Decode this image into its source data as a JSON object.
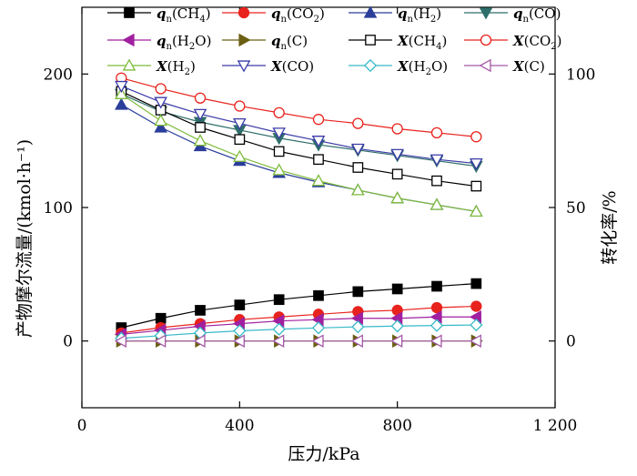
{
  "chart_data": {
    "type": "line",
    "xlabel": "压力/kPa",
    "ylabel_left": "产物摩尔流量/(kmol·h⁻¹)",
    "ylabel_right": "转化率/%",
    "x_ticks": [
      "0",
      "400",
      "800",
      "1 200"
    ],
    "y_left_ticks": [
      "0",
      "100",
      "200"
    ],
    "y_right_ticks": [
      "0",
      "50",
      "100"
    ],
    "xlim": [
      0,
      1200
    ],
    "ylim_left": [
      -50,
      250
    ],
    "ylim_right": [
      -25,
      125
    ],
    "grid": false,
    "legend_placement": "top",
    "x": [
      100,
      200,
      300,
      400,
      500,
      600,
      700,
      800,
      900,
      1000
    ],
    "series": [
      {
        "name": "qn(CH4)",
        "legend": {
          "main": "q",
          "sub": "n",
          "rest": "(CH",
          "sub2": "4",
          "tail": ")"
        },
        "axis": "left",
        "marker": "square-filled",
        "color": "#000000",
        "values": [
          10,
          17,
          23,
          27,
          31,
          34,
          37,
          39,
          41,
          43
        ]
      },
      {
        "name": "qn(CO2)",
        "legend": {
          "main": "q",
          "sub": "n",
          "rest": "(CO",
          "sub2": "2",
          "tail": ")"
        },
        "axis": "left",
        "marker": "circle-filled",
        "color": "#e8231d",
        "values": [
          6,
          10,
          13,
          16,
          18,
          20,
          22,
          23,
          25,
          26
        ]
      },
      {
        "name": "qn(H2)",
        "legend": {
          "main": "q",
          "sub": "n",
          "rest": "(H",
          "sub2": "2",
          "tail": ")"
        },
        "axis": "left",
        "marker": "triangle-up-filled",
        "color": "#2a3e9a",
        "values": [
          177,
          160,
          146,
          135,
          126,
          119,
          113,
          107,
          102,
          97
        ]
      },
      {
        "name": "qn(CO)",
        "legend": {
          "main": "q",
          "sub": "n",
          "rest": "(CO)",
          "sub2": "",
          "tail": ""
        },
        "axis": "left",
        "marker": "triangle-down-filled",
        "color": "#2e6e6a",
        "values": [
          185,
          172,
          164,
          158,
          152,
          147,
          143,
          139,
          135,
          131
        ]
      },
      {
        "name": "qn(H2O)",
        "legend": {
          "main": "q",
          "sub": "n",
          "rest": "(H",
          "sub2": "2",
          "tail": "O)"
        },
        "axis": "left",
        "marker": "triangle-left-filled",
        "color": "#a020a0",
        "values": [
          5,
          8,
          11,
          13,
          15,
          16,
          17,
          17,
          18,
          18
        ]
      },
      {
        "name": "qn(C)",
        "legend": {
          "main": "q",
          "sub": "n",
          "rest": "(C)",
          "sub2": "",
          "tail": ""
        },
        "axis": "left",
        "marker": "triangle-right-filled",
        "color": "#6b5f12",
        "values": [
          0,
          0,
          0,
          0,
          0,
          0,
          0,
          0,
          0,
          0
        ]
      },
      {
        "name": "X(CH4)",
        "legend": {
          "main": "X",
          "sub": "",
          "rest": "(CH",
          "sub2": "4",
          "tail": ")"
        },
        "axis": "right",
        "marker": "square-open",
        "color": "#000000",
        "values": [
          93.5,
          86.5,
          80.0,
          75.5,
          71.0,
          68.0,
          65.0,
          62.5,
          60.0,
          58.0
        ]
      },
      {
        "name": "X(CO2)",
        "legend": {
          "main": "X",
          "sub": "",
          "rest": "(CO",
          "sub2": "2",
          "tail": ")"
        },
        "axis": "right",
        "marker": "circle-open",
        "color": "#e8231d",
        "values": [
          98.5,
          94.5,
          91.0,
          88.0,
          85.5,
          83.0,
          81.5,
          79.5,
          78.0,
          76.5
        ]
      },
      {
        "name": "X(H2)",
        "legend": {
          "main": "X",
          "sub": "",
          "rest": "(H",
          "sub2": "2",
          "tail": ")"
        },
        "axis": "right",
        "marker": "triangle-up-open",
        "color": "#7dbb3a",
        "values": [
          92.5,
          82.5,
          75.0,
          69.0,
          64.0,
          60.0,
          56.5,
          53.5,
          51.0,
          48.5
        ]
      },
      {
        "name": "X(CO)",
        "legend": {
          "main": "X",
          "sub": "",
          "rest": "(CO)",
          "sub2": "",
          "tail": ""
        },
        "axis": "right",
        "marker": "triangle-down-open",
        "color": "#3b3ba8",
        "values": [
          95.5,
          89.5,
          85.0,
          81.5,
          78.0,
          75.0,
          72.0,
          70.0,
          68.0,
          66.5
        ]
      },
      {
        "name": "X(H2O)",
        "legend": {
          "main": "X",
          "sub": "",
          "rest": "(H",
          "sub2": "2",
          "tail": "O)"
        },
        "axis": "right",
        "marker": "diamond-open",
        "color": "#37b9c8",
        "values": [
          1.0,
          2.0,
          3.0,
          3.8,
          4.4,
          4.9,
          5.3,
          5.6,
          5.8,
          6.0
        ]
      },
      {
        "name": "X(C)",
        "legend": {
          "main": "X",
          "sub": "",
          "rest": "(C)",
          "sub2": "",
          "tail": ""
        },
        "axis": "right",
        "marker": "triangle-left-open",
        "color": "#a45aa8",
        "values": [
          0,
          0,
          0,
          0,
          0,
          0,
          0,
          0,
          0,
          0
        ]
      }
    ]
  }
}
